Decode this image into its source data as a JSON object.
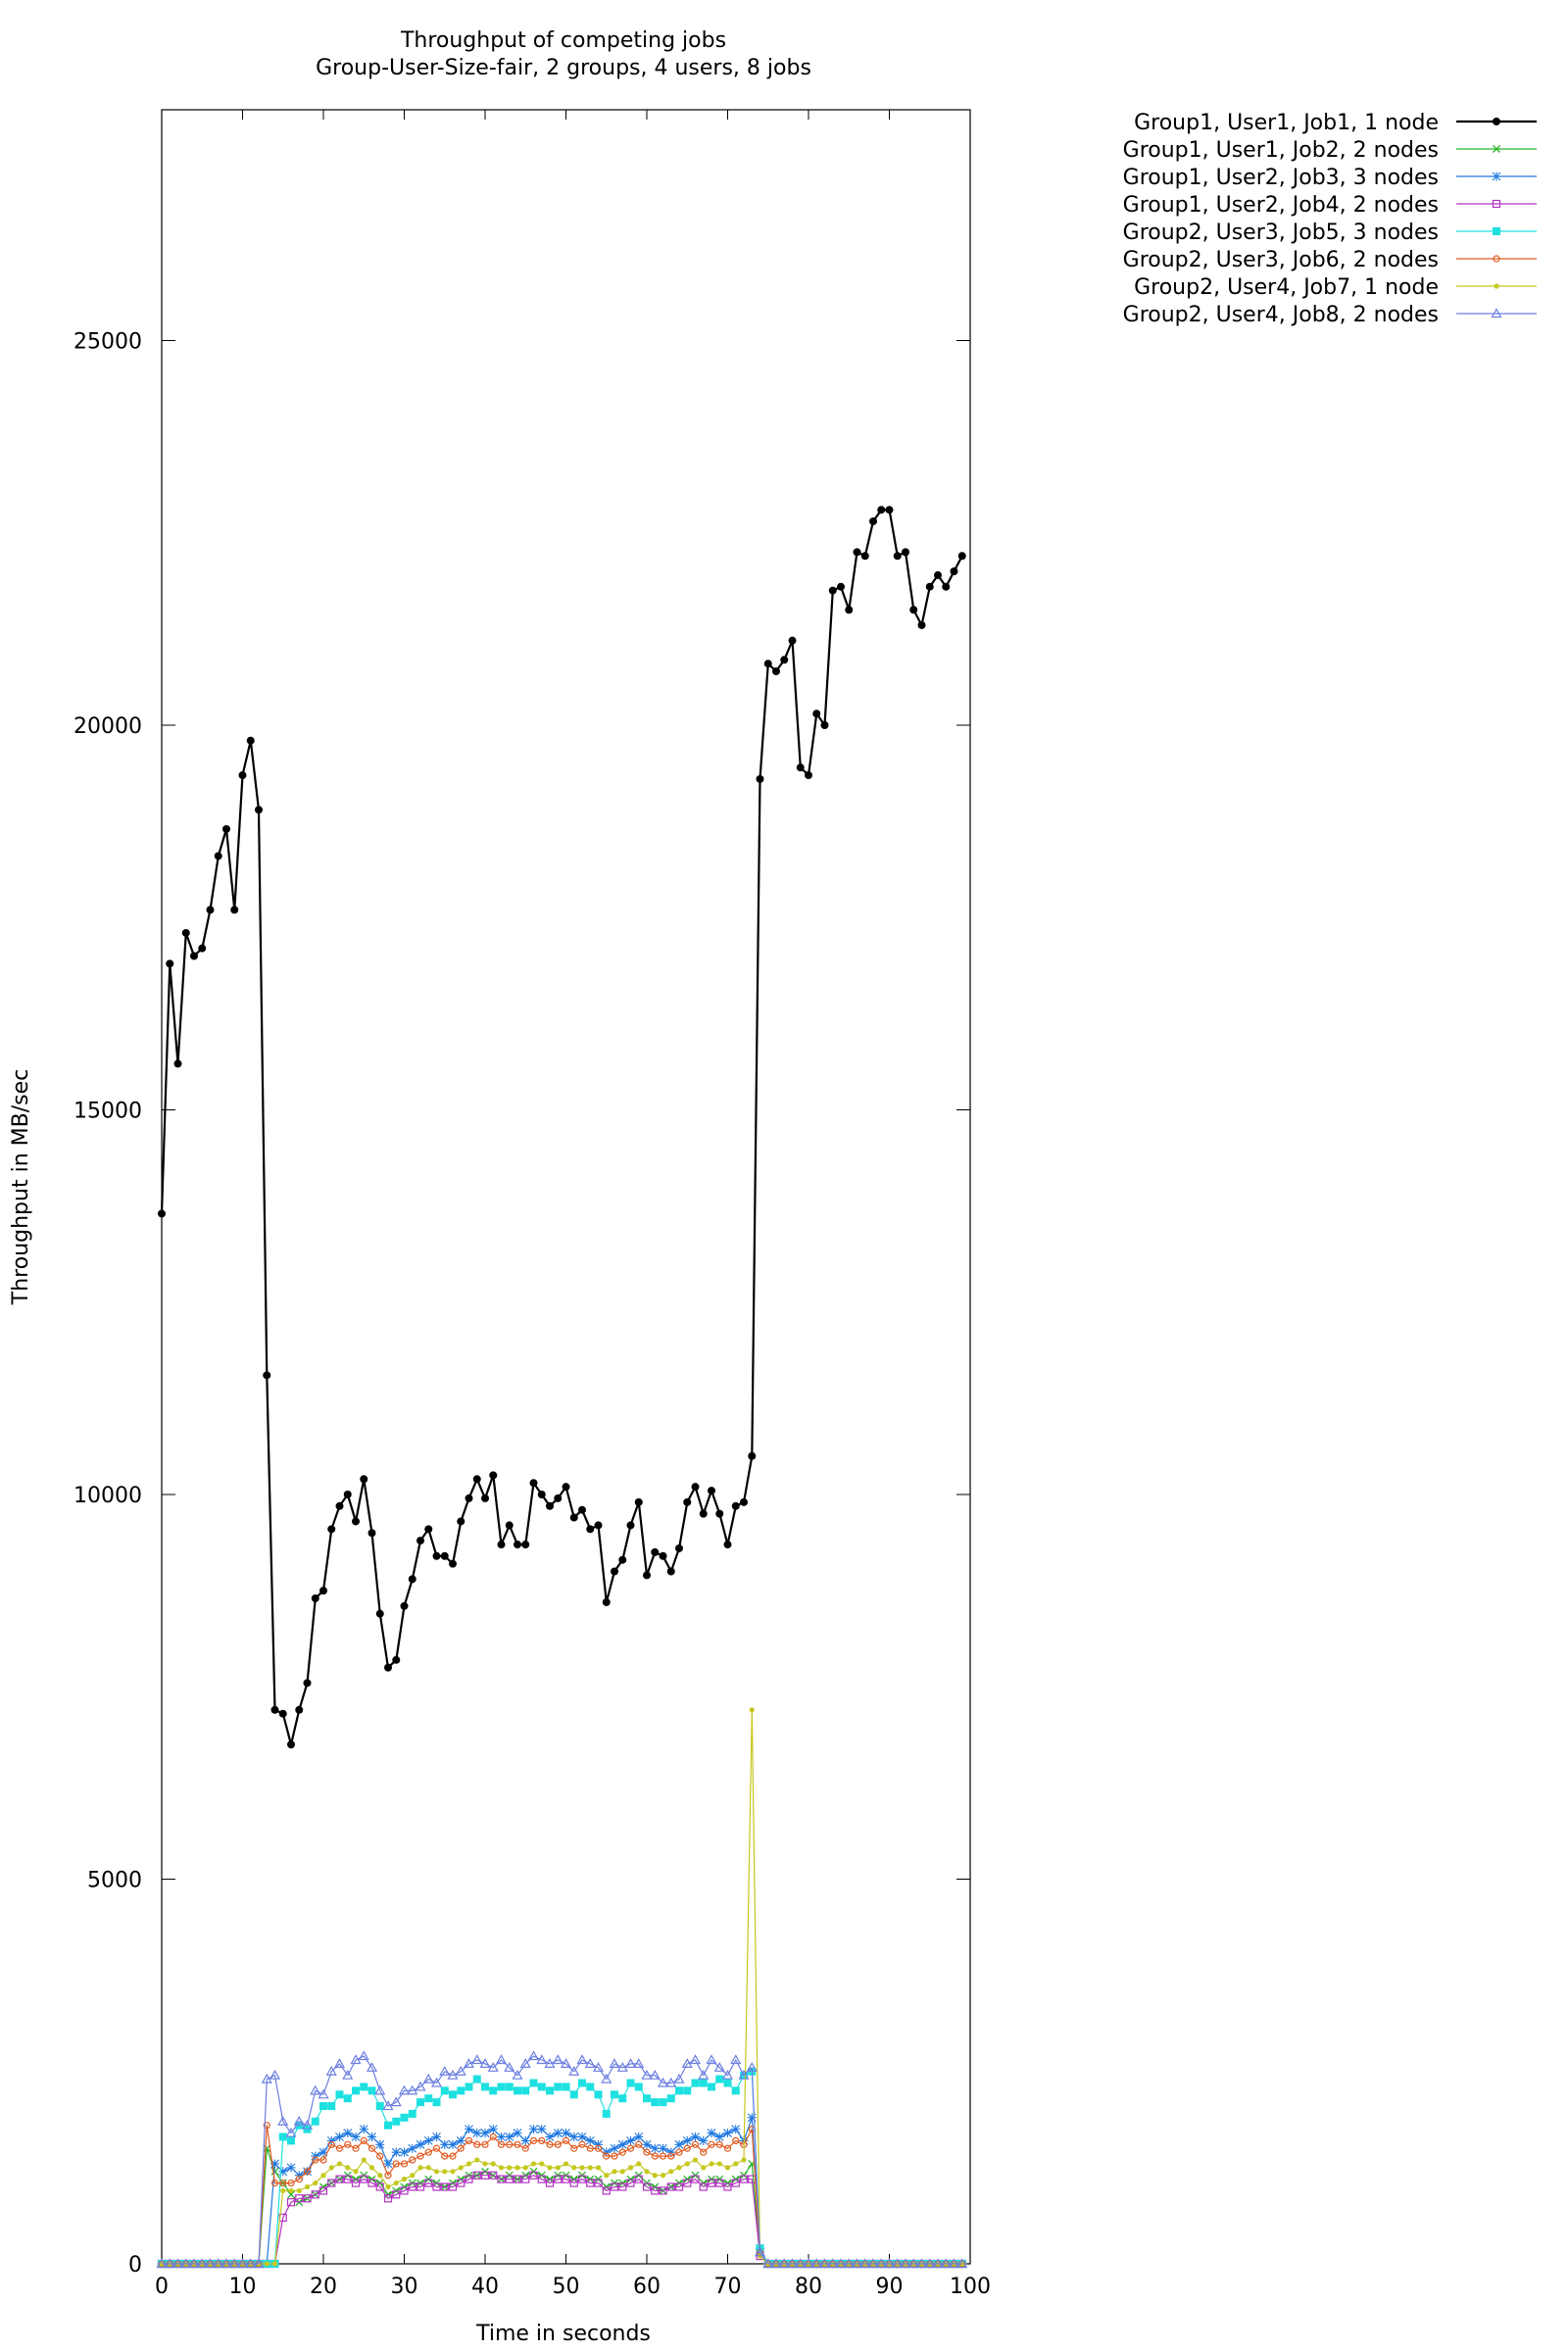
{
  "chart_data": {
    "type": "line",
    "title": "Throughput of competing jobs",
    "subtitle": "Group-User-Size-fair, 2 groups, 4 users, 8 jobs",
    "xlabel": "Time in seconds",
    "ylabel": "Throughput in MB/sec",
    "xlim": [
      0,
      100
    ],
    "ylim": [
      0,
      28000
    ],
    "x_ticks": [
      0,
      10,
      20,
      30,
      40,
      50,
      60,
      70,
      80,
      90,
      100
    ],
    "x_tick_labels": [
      "0",
      "10",
      "20",
      "30",
      "40",
      "50",
      "60",
      "70",
      "80",
      "90",
      "100"
    ],
    "y_ticks": [
      0,
      5000,
      10000,
      15000,
      20000,
      25000
    ],
    "y_tick_labels": [
      "0",
      "5000",
      "10000",
      "15000",
      "20000",
      "25000"
    ],
    "grid": false,
    "legend_position": "outside top-right",
    "x": [
      0,
      1,
      2,
      3,
      4,
      5,
      6,
      7,
      8,
      9,
      10,
      11,
      12,
      13,
      14,
      15,
      16,
      17,
      18,
      19,
      20,
      21,
      22,
      23,
      24,
      25,
      26,
      27,
      28,
      29,
      30,
      31,
      32,
      33,
      34,
      35,
      36,
      37,
      38,
      39,
      40,
      41,
      42,
      43,
      44,
      45,
      46,
      47,
      48,
      49,
      50,
      51,
      52,
      53,
      54,
      55,
      56,
      57,
      58,
      59,
      60,
      61,
      62,
      63,
      64,
      65,
      66,
      67,
      68,
      69,
      70,
      71,
      72,
      73,
      74,
      75,
      76,
      77,
      78,
      79,
      80,
      81,
      82,
      83,
      84,
      85,
      86,
      87,
      88,
      89,
      90,
      91,
      92,
      93,
      94,
      95,
      96,
      97,
      98,
      99
    ],
    "series": [
      {
        "name": "Group1, User1, Job1, 1 node",
        "color": "#000000",
        "marker": "circle",
        "width": 2.2,
        "values": [
          13650,
          16900,
          15600,
          17300,
          17000,
          17100,
          17600,
          18300,
          18650,
          17600,
          19350,
          19800,
          18900,
          11550,
          7200,
          7150,
          6750,
          7200,
          7550,
          8650,
          8750,
          9550,
          9850,
          10000,
          9650,
          10200,
          9500,
          8450,
          7750,
          7850,
          8550,
          8900,
          9400,
          9550,
          9200,
          9200,
          9100,
          9650,
          9950,
          10200,
          9950,
          10250,
          9350,
          9600,
          9350,
          9350,
          10150,
          10000,
          9850,
          9950,
          10100,
          9700,
          9800,
          9550,
          9600,
          8600,
          9000,
          9150,
          9600,
          9900,
          8950,
          9250,
          9200,
          9000,
          9300,
          9900,
          10100,
          9750,
          10050,
          9750,
          9350,
          9850,
          9900,
          10500,
          19300,
          20800,
          20700,
          20850,
          21100,
          19450,
          19350,
          20150,
          20000,
          21750,
          21800,
          21500,
          22250,
          22200,
          22650,
          22800,
          22800,
          22200,
          22250,
          21500,
          21300,
          21800,
          21950,
          21800,
          22000,
          22200
        ]
      },
      {
        "name": "Group1, User1, Job2, 2 nodes",
        "color": "#27b427",
        "marker": "x",
        "width": 1.2,
        "values": [
          0,
          0,
          0,
          0,
          0,
          0,
          0,
          0,
          0,
          0,
          0,
          0,
          0,
          1500,
          1200,
          1050,
          900,
          800,
          850,
          900,
          1000,
          1050,
          1100,
          1150,
          1100,
          1150,
          1100,
          1050,
          900,
          950,
          1000,
          1050,
          1050,
          1100,
          1050,
          1000,
          1050,
          1100,
          1150,
          1150,
          1200,
          1150,
          1100,
          1150,
          1100,
          1150,
          1200,
          1150,
          1100,
          1150,
          1150,
          1100,
          1150,
          1100,
          1100,
          1000,
          1050,
          1050,
          1100,
          1150,
          1050,
          1000,
          950,
          1000,
          1050,
          1100,
          1150,
          1050,
          1100,
          1100,
          1050,
          1100,
          1150,
          1300,
          150,
          0,
          0,
          0,
          0,
          0,
          0,
          0,
          0,
          0,
          0,
          0,
          0,
          0,
          0,
          0,
          0,
          0,
          0,
          0,
          0,
          0,
          0,
          0,
          0,
          0
        ]
      },
      {
        "name": "Group1, User2, Job3, 3 nodes",
        "color": "#1f78e0",
        "marker": "star",
        "width": 1.2,
        "values": [
          0,
          0,
          0,
          0,
          0,
          0,
          0,
          0,
          0,
          0,
          0,
          0,
          0,
          0,
          1300,
          1200,
          1250,
          1150,
          1200,
          1400,
          1450,
          1600,
          1650,
          1700,
          1650,
          1750,
          1650,
          1550,
          1300,
          1450,
          1450,
          1500,
          1550,
          1600,
          1650,
          1550,
          1550,
          1600,
          1750,
          1700,
          1700,
          1750,
          1650,
          1650,
          1700,
          1600,
          1750,
          1750,
          1650,
          1700,
          1700,
          1650,
          1650,
          1600,
          1550,
          1450,
          1500,
          1550,
          1600,
          1650,
          1550,
          1500,
          1500,
          1450,
          1550,
          1600,
          1650,
          1600,
          1700,
          1650,
          1700,
          1750,
          1600,
          1900,
          200,
          0,
          0,
          0,
          0,
          0,
          0,
          0,
          0,
          0,
          0,
          0,
          0,
          0,
          0,
          0,
          0,
          0,
          0,
          0,
          0,
          0,
          0,
          0,
          0,
          0
        ]
      },
      {
        "name": "Group1, User2, Job4, 2 nodes",
        "color": "#b233c2",
        "marker": "square-open",
        "width": 1.2,
        "values": [
          0,
          0,
          0,
          0,
          0,
          0,
          0,
          0,
          0,
          0,
          0,
          0,
          0,
          0,
          0,
          600,
          800,
          850,
          850,
          900,
          950,
          1050,
          1100,
          1100,
          1050,
          1100,
          1050,
          1000,
          850,
          900,
          950,
          1000,
          1000,
          1050,
          1000,
          1000,
          1000,
          1050,
          1100,
          1150,
          1150,
          1150,
          1100,
          1100,
          1100,
          1100,
          1150,
          1100,
          1050,
          1100,
          1100,
          1050,
          1100,
          1050,
          1050,
          950,
          1000,
          1000,
          1050,
          1100,
          1000,
          950,
          950,
          1000,
          1000,
          1050,
          1100,
          1000,
          1050,
          1050,
          1000,
          1050,
          1100,
          1100,
          100,
          0,
          0,
          0,
          0,
          0,
          0,
          0,
          0,
          0,
          0,
          0,
          0,
          0,
          0,
          0,
          0,
          0,
          0,
          0,
          0,
          0,
          0,
          0,
          0,
          0
        ]
      },
      {
        "name": "Group2, User3, Job5, 3 nodes",
        "color": "#1ee0e0",
        "marker": "square-filled",
        "width": 1.2,
        "values": [
          0,
          0,
          0,
          0,
          0,
          0,
          0,
          0,
          0,
          0,
          0,
          0,
          0,
          0,
          0,
          1650,
          1600,
          1800,
          1750,
          1850,
          2050,
          2050,
          2200,
          2150,
          2250,
          2300,
          2250,
          2050,
          1800,
          1850,
          1900,
          1950,
          2100,
          2150,
          2100,
          2250,
          2200,
          2250,
          2300,
          2400,
          2300,
          2250,
          2300,
          2300,
          2250,
          2250,
          2350,
          2300,
          2250,
          2300,
          2300,
          2200,
          2350,
          2300,
          2200,
          1950,
          2200,
          2150,
          2350,
          2300,
          2150,
          2100,
          2100,
          2150,
          2250,
          2250,
          2350,
          2350,
          2300,
          2400,
          2350,
          2250,
          2450,
          2500,
          200,
          0,
          0,
          0,
          0,
          0,
          0,
          0,
          0,
          0,
          0,
          0,
          0,
          0,
          0,
          0,
          0,
          0,
          0,
          0,
          0,
          0,
          0,
          0,
          0,
          0
        ]
      },
      {
        "name": "Group2, User3, Job6, 2 nodes",
        "color": "#e05a20",
        "marker": "circle-open",
        "width": 1.2,
        "values": [
          0,
          0,
          0,
          0,
          0,
          0,
          0,
          0,
          0,
          0,
          0,
          0,
          0,
          1800,
          1050,
          1050,
          1050,
          1100,
          1200,
          1350,
          1350,
          1550,
          1500,
          1550,
          1500,
          1600,
          1500,
          1400,
          1150,
          1300,
          1300,
          1350,
          1400,
          1450,
          1500,
          1400,
          1400,
          1500,
          1600,
          1550,
          1550,
          1650,
          1550,
          1550,
          1550,
          1500,
          1600,
          1600,
          1550,
          1550,
          1600,
          1500,
          1550,
          1500,
          1500,
          1400,
          1400,
          1450,
          1500,
          1550,
          1450,
          1400,
          1400,
          1400,
          1450,
          1500,
          1550,
          1450,
          1550,
          1550,
          1500,
          1600,
          1550,
          1750,
          150,
          0,
          0,
          0,
          0,
          0,
          0,
          0,
          0,
          0,
          0,
          0,
          0,
          0,
          0,
          0,
          0,
          0,
          0,
          0,
          0,
          0,
          0,
          0,
          0,
          0
        ]
      },
      {
        "name": "Group2, User4, Job7, 1 node",
        "color": "#c5c81f",
        "marker": "dot",
        "width": 1.2,
        "values": [
          0,
          0,
          0,
          0,
          0,
          0,
          0,
          0,
          0,
          0,
          0,
          0,
          0,
          0,
          0,
          950,
          950,
          950,
          1000,
          1050,
          1150,
          1250,
          1300,
          1250,
          1200,
          1350,
          1250,
          1150,
          1000,
          1050,
          1100,
          1150,
          1250,
          1250,
          1200,
          1200,
          1200,
          1250,
          1300,
          1350,
          1300,
          1300,
          1250,
          1250,
          1250,
          1250,
          1300,
          1300,
          1250,
          1250,
          1300,
          1250,
          1250,
          1250,
          1250,
          1150,
          1200,
          1200,
          1250,
          1300,
          1200,
          1150,
          1150,
          1200,
          1250,
          1300,
          1350,
          1250,
          1300,
          1300,
          1250,
          1300,
          1350,
          7200,
          100,
          0,
          0,
          0,
          0,
          0,
          0,
          0,
          0,
          0,
          0,
          0,
          0,
          0,
          0,
          0,
          0,
          0,
          0,
          0,
          0,
          0,
          0,
          0,
          0,
          0
        ]
      },
      {
        "name": "Group2, User4, Job8, 2 nodes",
        "color": "#6c7fe0",
        "marker": "triangle-open",
        "width": 1.2,
        "values": [
          0,
          0,
          0,
          0,
          0,
          0,
          0,
          0,
          0,
          0,
          0,
          0,
          0,
          2400,
          2450,
          1850,
          1700,
          1850,
          1800,
          2250,
          2200,
          2500,
          2600,
          2450,
          2650,
          2700,
          2550,
          2250,
          2050,
          2100,
          2250,
          2250,
          2300,
          2400,
          2350,
          2500,
          2450,
          2500,
          2600,
          2650,
          2600,
          2550,
          2650,
          2550,
          2450,
          2600,
          2700,
          2650,
          2600,
          2650,
          2600,
          2500,
          2650,
          2600,
          2550,
          2400,
          2600,
          2550,
          2600,
          2600,
          2450,
          2450,
          2350,
          2350,
          2400,
          2600,
          2650,
          2450,
          2650,
          2550,
          2450,
          2650,
          2450,
          2550,
          150,
          0,
          0,
          0,
          0,
          0,
          0,
          0,
          0,
          0,
          0,
          0,
          0,
          0,
          0,
          0,
          0,
          0,
          0,
          0,
          0,
          0,
          0,
          0,
          0,
          0
        ]
      }
    ]
  }
}
